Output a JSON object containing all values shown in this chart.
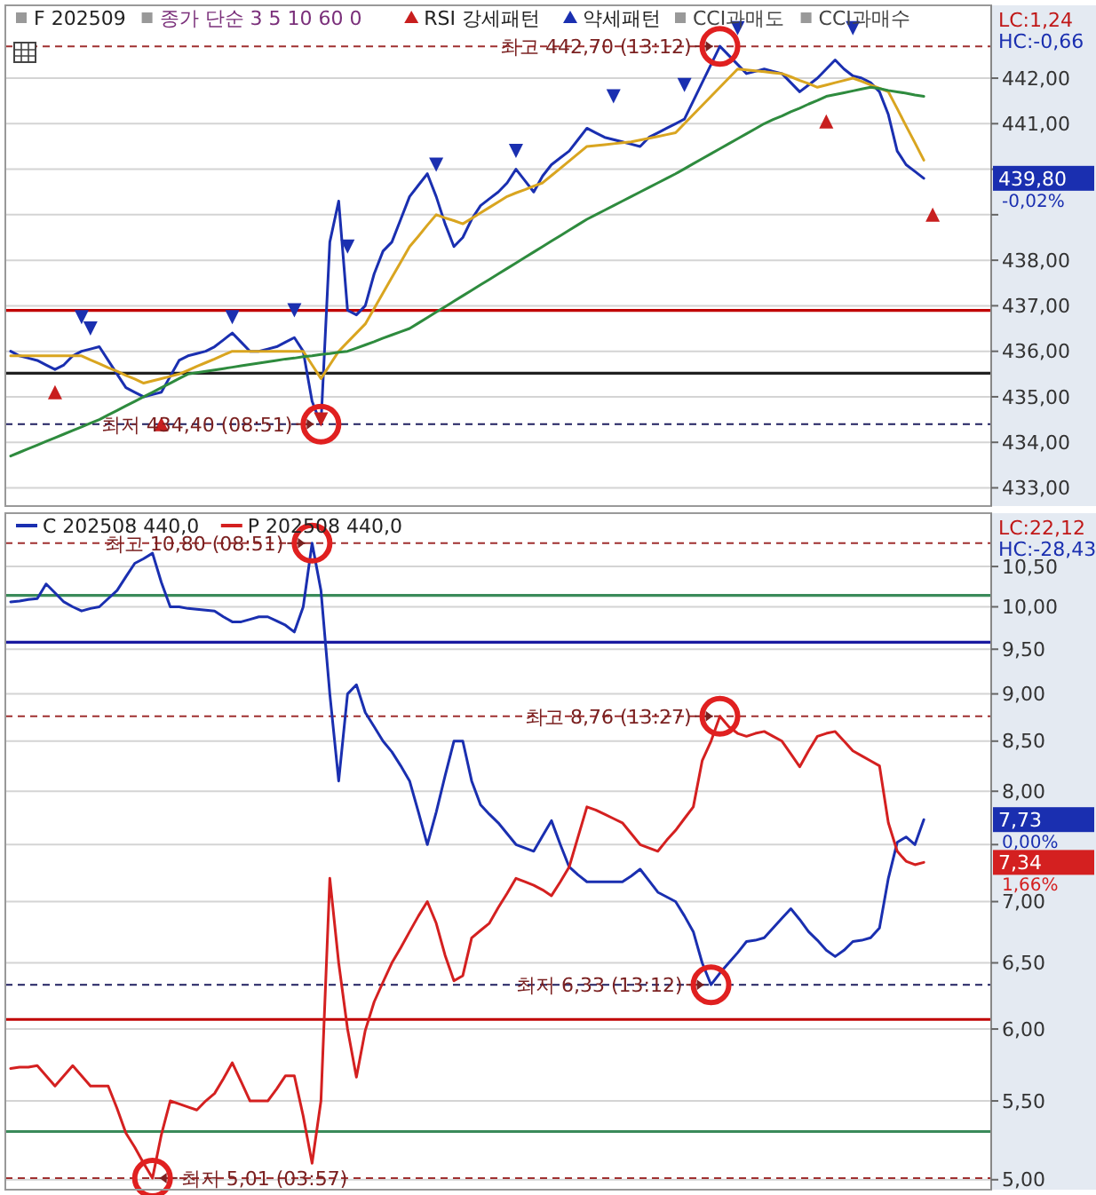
{
  "chart_data": [
    {
      "type": "line",
      "title": "F 202509",
      "subtitle": "종가 단순 3 5 10 60 0",
      "categories": [
        null,
        null,
        null,
        null,
        null,
        null,
        null,
        null,
        null,
        null,
        null,
        null,
        null,
        null,
        null,
        null,
        null,
        null,
        null,
        null,
        null,
        null,
        null,
        null,
        null,
        null,
        null,
        null,
        null,
        null,
        null,
        null,
        null,
        null,
        null,
        null,
        null,
        null,
        null,
        null,
        null,
        null,
        null,
        null,
        null,
        null,
        null,
        null,
        null,
        null,
        null,
        null,
        null,
        null,
        null,
        null,
        null,
        null,
        null,
        null,
        null,
        null,
        null,
        null,
        null,
        null,
        null,
        null,
        null,
        null,
        null,
        null,
        null,
        null,
        null,
        null,
        null,
        null,
        null,
        null,
        null,
        null,
        null,
        null,
        null,
        null,
        null,
        null,
        null,
        null,
        null,
        null,
        null,
        null,
        null,
        null,
        null,
        null,
        null,
        null,
        null,
        null,
        null,
        null,
        null,
        null,
        null,
        null,
        null,
        null,
        null
      ],
      "ylim": [
        432.6,
        443.6
      ],
      "yticks": [
        {
          "value": 433,
          "label": "433,00"
        },
        {
          "value": 434,
          "label": "434,00"
        },
        {
          "value": 435,
          "label": "435,00"
        },
        {
          "value": 436,
          "label": "436,00"
        },
        {
          "value": 437,
          "label": "437,00"
        },
        {
          "value": 438,
          "label": "438,00"
        },
        {
          "value": 439,
          "label": null
        },
        {
          "value": 440,
          "label": null
        },
        {
          "value": 441,
          "label": "441,00"
        },
        {
          "value": 442,
          "label": "442,00"
        }
      ],
      "grid": "y",
      "tick_labels": "y",
      "legend": "top left",
      "line_style": "solid",
      "series": [
        {
          "color": "#1a2fb0",
          "values": [
            436.0,
            435.9,
            435.85,
            435.8,
            435.7,
            435.6,
            435.7,
            435.9,
            436.0,
            436.05,
            436.1,
            435.8,
            435.5,
            435.2,
            435.1,
            435.0,
            435.05,
            435.1,
            435.45,
            435.8,
            435.9,
            435.95,
            436.0,
            436.1,
            436.25,
            436.4,
            436.2,
            436.0,
            436.0,
            436.05,
            436.1,
            436.2,
            436.3,
            436.0,
            434.9,
            434.4,
            438.4,
            439.3,
            436.9,
            436.8,
            437.0,
            437.7,
            438.2,
            438.4,
            438.9,
            439.4,
            439.65,
            439.9,
            439.4,
            438.8,
            438.3,
            438.5,
            438.9,
            439.2,
            439.35,
            439.5,
            439.7,
            440.0,
            439.75,
            439.5,
            439.85,
            440.1,
            440.25,
            440.4,
            440.65,
            440.9,
            440.8,
            440.7,
            440.65,
            440.6,
            440.55,
            440.5,
            440.7,
            440.8,
            440.9,
            441.0,
            441.1,
            441.5,
            441.9,
            442.3,
            442.7,
            442.5,
            442.3,
            442.1,
            442.15,
            442.2,
            442.15,
            442.1,
            441.9,
            441.7,
            441.85,
            442.0,
            442.2,
            442.4,
            442.2,
            442.05,
            442.0,
            441.9,
            441.7,
            441.2,
            440.4,
            440.1,
            439.95,
            439.8,
            null,
            null,
            null,
            null,
            null,
            null,
            null
          ]
        },
        {
          "color": "#d9a520",
          "values": [
            435.9,
            435.9,
            435.9,
            435.9,
            435.9,
            435.9,
            435.9,
            435.9,
            435.9,
            435.81,
            435.73,
            435.64,
            435.56,
            435.47,
            435.39,
            435.3,
            435.35,
            435.4,
            435.45,
            435.5,
            435.58,
            435.67,
            435.75,
            435.83,
            435.92,
            436.0,
            436.0,
            436.0,
            436.0,
            436.0,
            436.0,
            436.0,
            436.0,
            436.0,
            435.7,
            435.4,
            435.7,
            436.0,
            436.2,
            436.4,
            436.6,
            436.94,
            437.28,
            437.62,
            437.96,
            438.3,
            438.53,
            438.77,
            439.0,
            438.93,
            438.87,
            438.8,
            438.92,
            439.04,
            439.16,
            439.28,
            439.4,
            439.48,
            439.55,
            439.63,
            439.7,
            439.86,
            440.02,
            440.18,
            440.34,
            440.5,
            440.52,
            440.54,
            440.56,
            440.58,
            440.6,
            440.64,
            440.68,
            440.72,
            440.76,
            440.8,
            441.0,
            441.2,
            441.4,
            441.6,
            441.8,
            442.0,
            442.2,
            442.18,
            442.16,
            442.14,
            442.12,
            442.1,
            442.03,
            441.95,
            441.88,
            441.8,
            441.85,
            441.9,
            441.95,
            442.0,
            441.93,
            441.85,
            441.78,
            441.7,
            441.33,
            440.95,
            440.58,
            440.2,
            null,
            null,
            null,
            null,
            null,
            null,
            null
          ]
        },
        {
          "color": "#2e8b3e",
          "values": [
            433.7,
            433.78,
            433.86,
            433.94,
            434.02,
            434.1,
            434.18,
            434.26,
            434.34,
            434.42,
            434.5,
            434.6,
            434.7,
            434.8,
            434.9,
            435.0,
            435.1,
            435.2,
            435.3,
            435.4,
            435.5,
            435.53,
            435.56,
            435.59,
            435.62,
            435.65,
            435.68,
            435.71,
            435.74,
            435.77,
            435.8,
            435.83,
            435.85,
            435.88,
            435.9,
            435.93,
            435.95,
            435.98,
            436.0,
            436.07,
            436.14,
            436.21,
            436.29,
            436.36,
            436.43,
            436.5,
            436.62,
            436.74,
            436.86,
            436.98,
            437.1,
            437.22,
            437.34,
            437.46,
            437.58,
            437.7,
            437.82,
            437.94,
            438.06,
            438.18,
            438.3,
            438.42,
            438.54,
            438.66,
            438.78,
            438.9,
            439.0,
            439.1,
            439.2,
            439.3,
            439.4,
            439.5,
            439.6,
            439.7,
            439.8,
            439.9,
            440.01,
            440.12,
            440.23,
            440.34,
            440.45,
            440.56,
            440.67,
            440.78,
            440.89,
            441.0,
            441.09,
            441.17,
            441.26,
            441.34,
            441.43,
            441.51,
            441.6,
            441.64,
            441.68,
            441.72,
            441.76,
            441.8,
            441.77,
            441.73,
            441.7,
            441.67,
            441.63,
            441.6,
            null,
            null,
            null,
            null,
            null,
            null,
            null
          ]
        },
        {
          "type": "scatter",
          "name": "RSI 강세패턴",
          "color": "#c81e1e",
          "marker": "triangle",
          "values": [
            null,
            null,
            null,
            null,
            null,
            435.1,
            null,
            null,
            null,
            null,
            null,
            null,
            null,
            null,
            null,
            null,
            null,
            434.4,
            null,
            null,
            null,
            null,
            null,
            null,
            null,
            null,
            null,
            null,
            null,
            null,
            null,
            null,
            null,
            null,
            null,
            434.5,
            null,
            null,
            null,
            null,
            null,
            null,
            null,
            null,
            null,
            null,
            null,
            null,
            null,
            null,
            null,
            null,
            null,
            null,
            null,
            null,
            null,
            null,
            null,
            null,
            null,
            null,
            null,
            null,
            null,
            null,
            null,
            null,
            null,
            null,
            null,
            null,
            null,
            null,
            null,
            null,
            null,
            null,
            null,
            null,
            null,
            null,
            null,
            null,
            null,
            null,
            null,
            null,
            null,
            null,
            null,
            null,
            441.05,
            null,
            null,
            null,
            null,
            null,
            null,
            null,
            null,
            null,
            null,
            null,
            439.0,
            null,
            null,
            null,
            null,
            null,
            null
          ]
        },
        {
          "type": "scatter",
          "name": "약세패턴",
          "color": "#1a2fb0",
          "marker": "triangle",
          "values": [
            null,
            null,
            null,
            null,
            null,
            null,
            null,
            null,
            436.75,
            436.5,
            null,
            null,
            null,
            null,
            null,
            null,
            null,
            null,
            null,
            null,
            null,
            null,
            null,
            null,
            null,
            436.75,
            null,
            null,
            null,
            null,
            null,
            null,
            436.9,
            null,
            null,
            null,
            null,
            null,
            438.3,
            null,
            null,
            null,
            null,
            null,
            null,
            null,
            null,
            null,
            440.1,
            null,
            null,
            null,
            null,
            null,
            null,
            null,
            null,
            440.4,
            null,
            null,
            null,
            null,
            null,
            null,
            null,
            null,
            null,
            null,
            441.6,
            null,
            null,
            null,
            null,
            null,
            null,
            null,
            441.85,
            null,
            null,
            null,
            null,
            null,
            443.1,
            null,
            null,
            null,
            null,
            null,
            null,
            null,
            null,
            null,
            null,
            null,
            null,
            443.1,
            null,
            null,
            null,
            null,
            null,
            null,
            null,
            null,
            null,
            null,
            null,
            null,
            null,
            null,
            null
          ]
        }
      ],
      "ref_lines": [
        {
          "axis": "y",
          "value": 442.7,
          "line_style": "dashed",
          "color": "#a03030"
        },
        {
          "axis": "y",
          "value": 434.4,
          "line_style": "dashed",
          "color": "#202060"
        },
        {
          "axis": "y",
          "value": 436.9,
          "color": "#c00000"
        },
        {
          "axis": "y",
          "value": 435.52,
          "color": "#202020"
        }
      ],
      "annotations": [
        "CCI과매도",
        "CCI과매수",
        {
          "text": "최고 442,70 (13:12)",
          "y": 442.7
        },
        {
          "text": "최저 434,40 (08:51)",
          "y": 434.4
        },
        "LC:1,24",
        "HC:-0,66",
        "439,80",
        "-0,02%"
      ]
    },
    {
      "type": "line",
      "log": "y",
      "categories": [
        null,
        null,
        null,
        null,
        null,
        null,
        null,
        null,
        null,
        null,
        null,
        null,
        null,
        null,
        null,
        null,
        null,
        null,
        null,
        null,
        null,
        null,
        null,
        null,
        null,
        null,
        null,
        null,
        null,
        null,
        null,
        null,
        null,
        null,
        null,
        null,
        null,
        null,
        null,
        null,
        null,
        null,
        null,
        null,
        null,
        null,
        null,
        null,
        null,
        null,
        null,
        null,
        null,
        null,
        null,
        null,
        null,
        null,
        null,
        null,
        null,
        null,
        null,
        null,
        null,
        null,
        null,
        null,
        null,
        null,
        null,
        null,
        null,
        null,
        null,
        null,
        null,
        null,
        null,
        null,
        null,
        null,
        null,
        null,
        null,
        null,
        null,
        null,
        null,
        null,
        null,
        null,
        null,
        null,
        null,
        null,
        null,
        null,
        null,
        null,
        null,
        null,
        null,
        null,
        null,
        null,
        null,
        null,
        null,
        null,
        null
      ],
      "ylim": [
        4.94,
        11.2
      ],
      "yticks": [
        {
          "value": 5,
          "label": "5,00"
        },
        {
          "value": 5.5,
          "label": "5,50"
        },
        {
          "value": 6,
          "label": "6,00"
        },
        {
          "value": 6.5,
          "label": "6,50"
        },
        {
          "value": 7,
          "label": "7,00"
        },
        {
          "value": 7.5,
          "label": null
        },
        {
          "value": 8,
          "label": "8,00"
        },
        {
          "value": 8.5,
          "label": "8,50"
        },
        {
          "value": 9,
          "label": "9,00"
        },
        {
          "value": 9.5,
          "label": "9,50"
        },
        {
          "value": 10,
          "label": "10,00"
        },
        {
          "value": 10.5,
          "label": "10,50"
        }
      ],
      "grid": "y",
      "tick_labels": "y",
      "legend": "top left",
      "line_style": "solid",
      "series": [
        {
          "name": "C 202508 440,0",
          "color": "#1a2fb0",
          "values": [
            10.06,
            10.07,
            10.09,
            10.1,
            10.28,
            10.17,
            10.06,
            10.0,
            9.95,
            9.98,
            10.0,
            10.1,
            10.2,
            10.37,
            10.54,
            10.6,
            10.67,
            10.3,
            10.0,
            10.0,
            9.98,
            9.97,
            9.96,
            9.95,
            9.88,
            9.82,
            9.82,
            9.85,
            9.88,
            9.88,
            9.83,
            9.78,
            9.7,
            10.0,
            10.8,
            10.2,
            9.0,
            8.1,
            9.0,
            9.1,
            8.8,
            8.65,
            8.5,
            8.39,
            8.25,
            8.1,
            7.8,
            7.5,
            7.8,
            8.15,
            8.5,
            8.5,
            8.1,
            7.87,
            7.78,
            7.7,
            7.6,
            7.5,
            7.47,
            7.44,
            7.58,
            7.72,
            7.5,
            7.3,
            7.23,
            7.17,
            7.17,
            7.17,
            7.17,
            7.17,
            7.22,
            7.28,
            7.18,
            7.08,
            7.04,
            7.0,
            6.88,
            6.75,
            6.5,
            6.33,
            6.42,
            6.5,
            6.58,
            6.67,
            6.68,
            6.7,
            6.78,
            6.86,
            6.94,
            6.85,
            6.75,
            6.68,
            6.6,
            6.55,
            6.6,
            6.67,
            6.68,
            6.7,
            6.78,
            7.2,
            7.52,
            7.57,
            7.5,
            7.73,
            null,
            null,
            null,
            null,
            null,
            null,
            null
          ]
        },
        {
          "name": "P 202508 440,0",
          "color": "#d42020",
          "values": [
            5.72,
            5.73,
            5.73,
            5.74,
            5.67,
            5.6,
            5.67,
            5.74,
            5.67,
            5.6,
            5.6,
            5.6,
            5.45,
            5.29,
            5.2,
            5.1,
            5.01,
            5.28,
            5.5,
            5.48,
            5.46,
            5.44,
            5.5,
            5.55,
            5.65,
            5.76,
            5.63,
            5.5,
            5.5,
            5.5,
            5.58,
            5.67,
            5.67,
            5.4,
            5.1,
            5.5,
            7.2,
            6.5,
            6.0,
            5.66,
            5.99,
            6.2,
            6.35,
            6.5,
            6.62,
            6.75,
            6.88,
            7.0,
            6.82,
            6.56,
            6.36,
            6.4,
            6.7,
            6.76,
            6.82,
            6.95,
            7.07,
            7.2,
            7.17,
            7.14,
            7.1,
            7.05,
            7.17,
            7.3,
            7.57,
            7.85,
            7.82,
            7.78,
            7.74,
            7.7,
            7.6,
            7.5,
            7.47,
            7.44,
            7.54,
            7.63,
            7.74,
            7.85,
            8.3,
            8.5,
            8.76,
            8.65,
            8.58,
            8.55,
            8.58,
            8.6,
            8.55,
            8.5,
            8.37,
            8.24,
            8.4,
            8.55,
            8.58,
            8.6,
            8.5,
            8.4,
            8.35,
            8.3,
            8.25,
            7.7,
            7.44,
            7.35,
            7.32,
            7.34,
            null,
            null,
            null,
            null,
            null,
            null,
            null
          ]
        }
      ],
      "ref_lines": [
        {
          "axis": "y",
          "value": 10.8,
          "line_style": "dashed",
          "color": "#a03030"
        },
        {
          "axis": "y",
          "value": 10.14,
          "color": "#3a8a5a"
        },
        {
          "axis": "y",
          "value": 9.58,
          "color": "#1a1aa0"
        },
        {
          "axis": "y",
          "value": 8.76,
          "line_style": "dashed",
          "color": "#a03030"
        },
        {
          "axis": "y",
          "value": 6.33,
          "line_style": "dashed",
          "color": "#202060"
        },
        {
          "axis": "y",
          "value": 6.07,
          "color": "#c00000"
        },
        {
          "axis": "y",
          "value": 5.3,
          "color": "#3a8a5a"
        },
        {
          "axis": "y",
          "value": 5.01,
          "line_style": "dashed",
          "color": "#a03030"
        }
      ],
      "annotations": [
        {
          "text": "최고 10,80 (08:51)",
          "y": 10.8
        },
        {
          "text": "최고 8,76 (13:27)",
          "y": 8.76
        },
        {
          "text": "최저 6,33 (13:12)",
          "y": 6.33
        },
        {
          "text": "최저 5,01 (03:57)",
          "y": 5.01
        },
        "LC:22,12",
        "HC:-28,43",
        "7,73",
        "0,00%",
        "7,34",
        "1,66%"
      ]
    }
  ]
}
